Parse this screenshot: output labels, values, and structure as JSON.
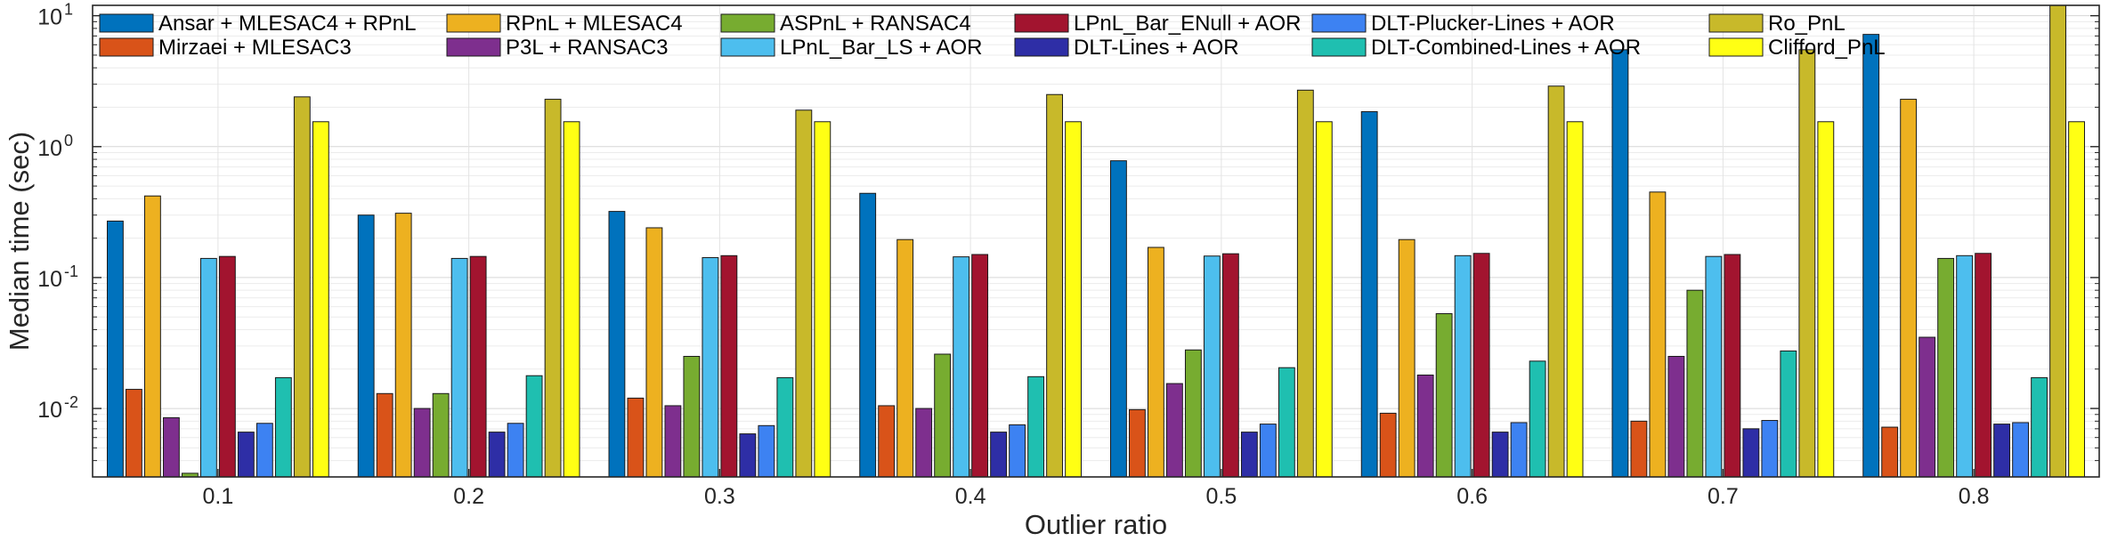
{
  "chart_data": {
    "type": "bar",
    "title": "",
    "xlabel": "Outlier ratio",
    "ylabel": "Median time (sec)",
    "yscale": "log",
    "ylim": [
      0.003,
      12
    ],
    "grid": true,
    "legend_position": "top",
    "categories": [
      "0.1",
      "0.2",
      "0.3",
      "0.4",
      "0.5",
      "0.6",
      "0.7",
      "0.8"
    ],
    "y_ticks": [
      {
        "value": 0.01,
        "base": "10",
        "exp": "-2"
      },
      {
        "value": 0.1,
        "base": "10",
        "exp": "-1"
      },
      {
        "value": 1,
        "base": "10",
        "exp": "0"
      },
      {
        "value": 10,
        "base": "10",
        "exp": "1"
      }
    ],
    "series": [
      {
        "name": "Ansar + MLESAC4 + RPnL",
        "color": "#0072BD",
        "values": [
          0.27,
          0.3,
          0.32,
          0.44,
          0.78,
          1.85,
          5.5,
          7.2
        ]
      },
      {
        "name": "Mirzaei + MLESAC3",
        "color": "#D95319",
        "values": [
          0.014,
          0.013,
          0.012,
          0.0105,
          0.0098,
          0.0092,
          0.008,
          0.0072
        ]
      },
      {
        "name": "RPnL + MLESAC4",
        "color": "#EDB120",
        "values": [
          0.42,
          0.31,
          0.24,
          0.195,
          0.17,
          0.195,
          0.45,
          2.3
        ]
      },
      {
        "name": "P3L + RANSAC3",
        "color": "#7E2F8E",
        "values": [
          0.0085,
          0.01,
          0.0105,
          0.01,
          0.0155,
          0.018,
          0.025,
          0.035
        ]
      },
      {
        "name": "ASPnL + RANSAC4",
        "color": "#77AC30",
        "values": [
          0.0032,
          0.013,
          0.025,
          0.026,
          0.028,
          0.053,
          0.08,
          0.14
        ]
      },
      {
        "name": "LPnL_Bar_LS + AOR",
        "color": "#4DBEEE",
        "values": [
          0.14,
          0.14,
          0.142,
          0.144,
          0.146,
          0.147,
          0.145,
          0.147
        ]
      },
      {
        "name": "LPnL_Bar_ENull + AOR",
        "color": "#A2142F",
        "values": [
          0.145,
          0.145,
          0.147,
          0.15,
          0.152,
          0.153,
          0.15,
          0.153
        ]
      },
      {
        "name": "DLT-Lines + AOR",
        "color": "#2E2EA6",
        "values": [
          0.0066,
          0.0066,
          0.0064,
          0.0066,
          0.0066,
          0.0066,
          0.007,
          0.0076
        ]
      },
      {
        "name": "DLT-Plucker-Lines + AOR",
        "color": "#3D82F2",
        "values": [
          0.0077,
          0.0077,
          0.0074,
          0.0075,
          0.0076,
          0.0078,
          0.0081,
          0.0078
        ]
      },
      {
        "name": "DLT-Combined-Lines + AOR",
        "color": "#1FBFB0",
        "values": [
          0.0172,
          0.0178,
          0.0172,
          0.0175,
          0.0205,
          0.023,
          0.0275,
          0.0172
        ]
      },
      {
        "name": "Ro_PnL",
        "color": "#C8B92A",
        "values": [
          2.4,
          2.3,
          1.9,
          2.5,
          2.7,
          2.9,
          5.5,
          12
        ]
      },
      {
        "name": "Clifford_PnL",
        "color": "#FFFF14",
        "values": [
          1.55,
          1.55,
          1.55,
          1.55,
          1.55,
          1.55,
          1.55,
          1.55
        ]
      }
    ]
  }
}
